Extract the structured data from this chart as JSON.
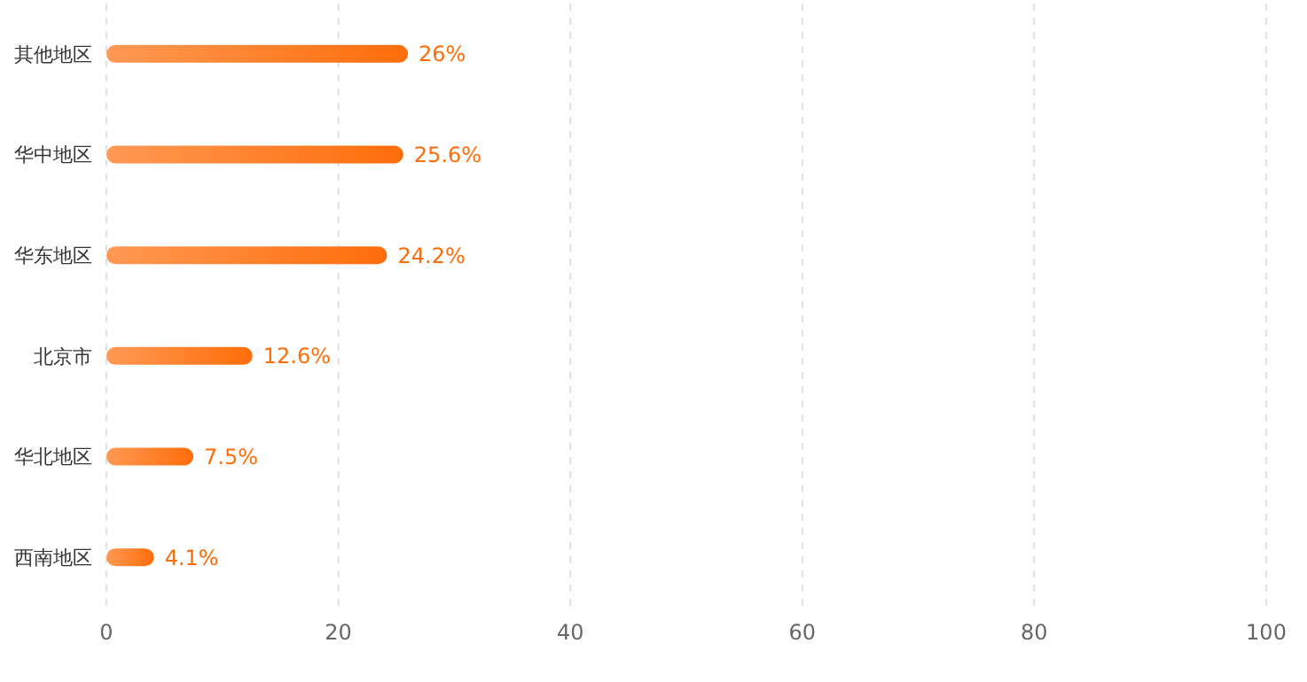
{
  "chart_data": {
    "type": "bar",
    "orientation": "horizontal",
    "categories": [
      "其他地区",
      "华中地区",
      "华东地区",
      "北京市",
      "华北地区",
      "西南地区"
    ],
    "values": [
      26,
      25.6,
      24.2,
      12.6,
      7.5,
      4.1
    ],
    "value_labels": [
      "26%",
      "25.6%",
      "24.2%",
      "12.6%",
      "7.5%",
      "4.1%"
    ],
    "color": "#ff6d0a",
    "xlim": [
      0,
      100
    ],
    "xticks": [
      0,
      20,
      40,
      60,
      80,
      100
    ],
    "grid": "x"
  }
}
